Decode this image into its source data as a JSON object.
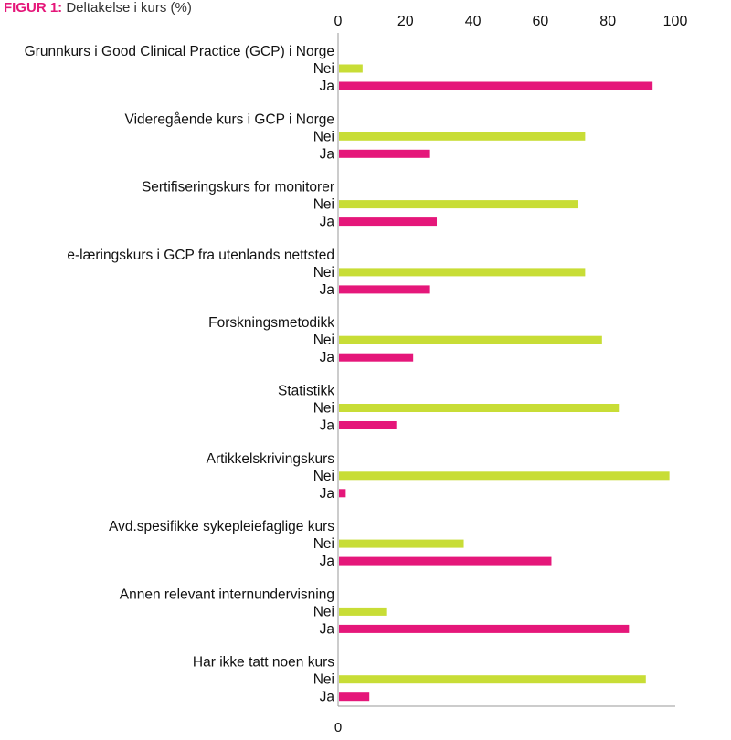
{
  "figure": {
    "prefix": "FIGUR 1:",
    "title": "Deltakelse i kurs (%)"
  },
  "colors": {
    "nei": "#c8dd36",
    "ja": "#e5177a",
    "axis": "#999999",
    "text": "#111111"
  },
  "chart_data": {
    "type": "bar",
    "orientation": "horizontal",
    "title": "Deltakelse i kurs (%)",
    "xlabel": "",
    "ylabel": "",
    "xlim": [
      0,
      100
    ],
    "ticks": [
      0,
      20,
      40,
      60,
      80,
      100
    ],
    "bottom_tick_label": "0",
    "series_names": [
      "Nei",
      "Ja"
    ],
    "categories": [
      "Grunnkurs i Good Clinical Practice (GCP) i Norge",
      "Videregående kurs i GCP i Norge",
      "Sertifiseringskurs for monitorer",
      "e-læringskurs i GCP fra utenlands nettsted",
      "Forskningsmetodikk",
      "Statistikk",
      "Artikkelskrivingskurs",
      "Avd.spesifikke sykepleiefaglige kurs",
      "Annen relevant internundervisning",
      "Har ikke tatt noen kurs"
    ],
    "series": [
      {
        "name": "Nei",
        "values": [
          7,
          73,
          71,
          73,
          78,
          83,
          98,
          37,
          14,
          91
        ]
      },
      {
        "name": "Ja",
        "values": [
          93,
          27,
          29,
          27,
          22,
          17,
          2,
          63,
          86,
          9
        ]
      }
    ]
  }
}
